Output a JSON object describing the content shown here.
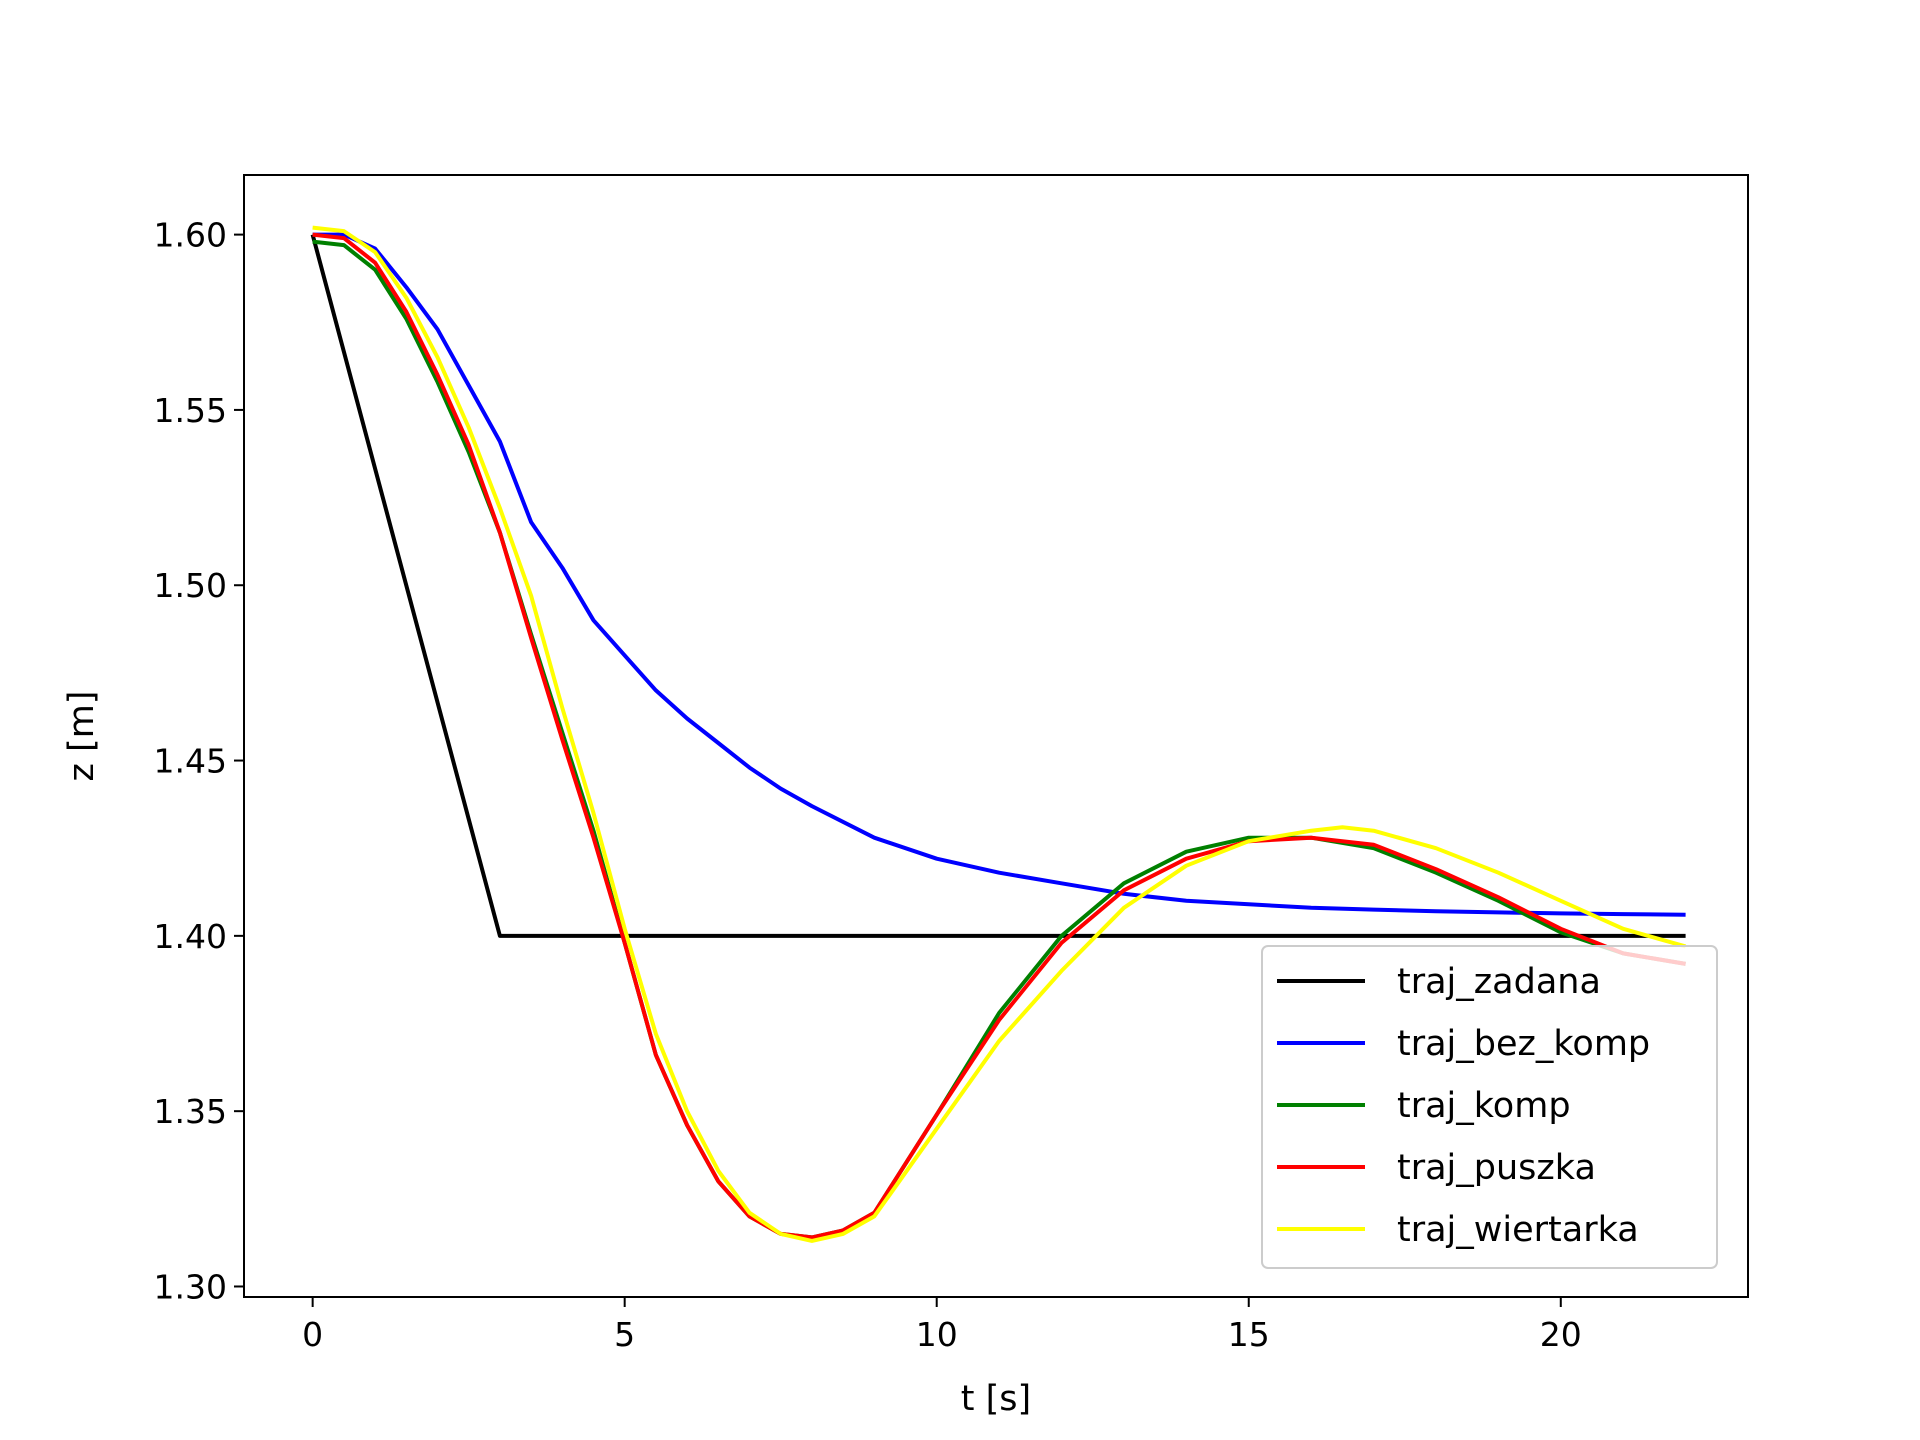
{
  "chart_data": {
    "type": "line",
    "title": "",
    "xlabel": "t [s]",
    "ylabel": "z [m]",
    "xlim": [
      -1.1,
      23.0
    ],
    "ylim": [
      1.297,
      1.617
    ],
    "xticks": [
      0,
      5,
      10,
      15,
      20
    ],
    "yticks": [
      1.3,
      1.35,
      1.4,
      1.45,
      1.5,
      1.55,
      1.6
    ],
    "xtick_labels": [
      "0",
      "5",
      "10",
      "15",
      "20"
    ],
    "ytick_labels": [
      "1.30",
      "1.35",
      "1.40",
      "1.45",
      "1.50",
      "1.55",
      "1.60"
    ],
    "grid": false,
    "legend_position": "lower-right",
    "series": [
      {
        "name": "traj_zadana",
        "color": "#000000",
        "x": [
          0,
          3.0,
          3.3,
          22.0
        ],
        "y": [
          1.6,
          1.4,
          1.4,
          1.4
        ]
      },
      {
        "name": "traj_bez_komp",
        "color": "#0000ff",
        "x": [
          0,
          0.5,
          1.0,
          1.5,
          2.0,
          2.5,
          3.0,
          3.5,
          4.0,
          4.5,
          5.0,
          5.5,
          6.0,
          6.5,
          7.0,
          7.5,
          8.0,
          9.0,
          10.0,
          11.0,
          12.0,
          13.0,
          14.0,
          15.0,
          16.0,
          17.0,
          18.0,
          19.0,
          20.0,
          21.0,
          22.0
        ],
        "y": [
          1.6,
          1.6,
          1.596,
          1.585,
          1.573,
          1.557,
          1.541,
          1.518,
          1.505,
          1.49,
          1.48,
          1.47,
          1.462,
          1.455,
          1.448,
          1.442,
          1.437,
          1.428,
          1.422,
          1.418,
          1.415,
          1.412,
          1.41,
          1.409,
          1.408,
          1.4075,
          1.407,
          1.4067,
          1.4064,
          1.4062,
          1.406
        ]
      },
      {
        "name": "traj_komp",
        "color": "#008000",
        "x": [
          0,
          0.5,
          1.0,
          1.5,
          2.0,
          2.5,
          3.0,
          3.5,
          4.0,
          4.5,
          5.0,
          5.5,
          6.0,
          6.5,
          7.0,
          7.5,
          8.0,
          8.5,
          9.0,
          10.0,
          11.0,
          12.0,
          13.0,
          14.0,
          15.0,
          16.0,
          17.0,
          18.0,
          19.0,
          20.0,
          21.0,
          22.0
        ],
        "y": [
          1.598,
          1.597,
          1.59,
          1.576,
          1.558,
          1.538,
          1.515,
          1.486,
          1.458,
          1.43,
          1.398,
          1.366,
          1.346,
          1.33,
          1.32,
          1.315,
          1.314,
          1.316,
          1.321,
          1.349,
          1.378,
          1.4,
          1.415,
          1.424,
          1.428,
          1.428,
          1.425,
          1.418,
          1.41,
          1.401,
          1.395,
          1.392
        ]
      },
      {
        "name": "traj_puszka",
        "color": "#ff0000",
        "x": [
          0,
          0.5,
          1.0,
          1.5,
          2.0,
          2.5,
          3.0,
          3.5,
          4.0,
          4.5,
          5.0,
          5.5,
          6.0,
          6.5,
          7.0,
          7.5,
          8.0,
          8.5,
          9.0,
          10.0,
          11.0,
          12.0,
          13.0,
          14.0,
          15.0,
          16.0,
          17.0,
          18.0,
          19.0,
          20.0,
          21.0,
          22.0
        ],
        "y": [
          1.6,
          1.599,
          1.592,
          1.578,
          1.56,
          1.54,
          1.515,
          1.485,
          1.456,
          1.428,
          1.398,
          1.366,
          1.346,
          1.33,
          1.32,
          1.315,
          1.314,
          1.316,
          1.321,
          1.349,
          1.376,
          1.398,
          1.413,
          1.422,
          1.427,
          1.428,
          1.426,
          1.419,
          1.411,
          1.402,
          1.395,
          1.392
        ]
      },
      {
        "name": "traj_wiertarka",
        "color": "#ffff00",
        "x": [
          0,
          0.5,
          1.0,
          1.5,
          2.0,
          2.5,
          3.0,
          3.5,
          4.0,
          4.5,
          5.0,
          5.5,
          6.0,
          6.5,
          7.0,
          7.5,
          8.0,
          8.5,
          9.0,
          10.0,
          11.0,
          12.0,
          13.0,
          14.0,
          15.0,
          16.0,
          16.5,
          17.0,
          18.0,
          19.0,
          20.0,
          21.0,
          22.0
        ],
        "y": [
          1.602,
          1.601,
          1.595,
          1.582,
          1.565,
          1.545,
          1.522,
          1.497,
          1.465,
          1.435,
          1.402,
          1.372,
          1.35,
          1.333,
          1.321,
          1.315,
          1.313,
          1.315,
          1.32,
          1.345,
          1.37,
          1.39,
          1.408,
          1.42,
          1.427,
          1.43,
          1.431,
          1.43,
          1.425,
          1.418,
          1.41,
          1.402,
          1.397
        ]
      }
    ]
  }
}
